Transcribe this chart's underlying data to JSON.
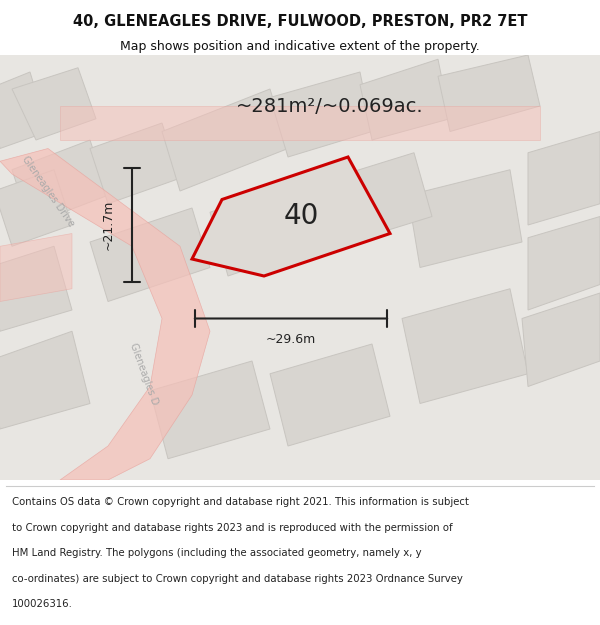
{
  "title_line1": "40, GLENEAGLES DRIVE, FULWOOD, PRESTON, PR2 7ET",
  "title_line2": "Map shows position and indicative extent of the property.",
  "area_label": "~281m²/~0.069ac.",
  "width_label": "~29.6m",
  "height_label": "~21.7m",
  "plot_number": "40",
  "footer": "Contains OS data © Crown copyright and database right 2021. This information is subject to Crown copyright and database rights 2023 and is reproduced with the permission of HM Land Registry. The polygons (including the associated geometry, namely x, y co-ordinates) are subject to Crown copyright and database rights 2023 Ordnance Survey 100026316.",
  "bg_color": "#f0eeeb",
  "map_bg": "#e8e6e2",
  "road_color": "#f5c0b8",
  "road_outline": "#e8a09a",
  "plot_outline_color": "#cc0000",
  "plot_fill_color": "#e0ddd8",
  "block_fill": "#d8d5d0",
  "block_outline": "#c8c5c0",
  "arrow_color": "#222222",
  "text_color": "#222222",
  "footer_color": "#222222",
  "title_color": "#111111"
}
